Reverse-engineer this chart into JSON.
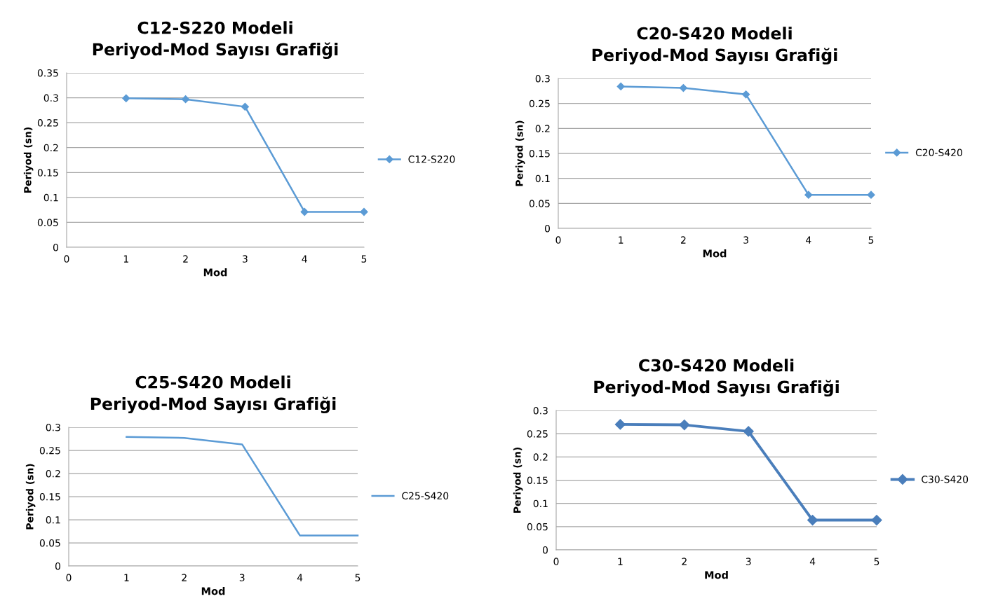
{
  "chart_data": [
    {
      "type": "line",
      "title": "C12-S220 Modeli\nPeriyod-Mod Sayısı Grafiği",
      "xlabel": "Mod",
      "ylabel": "Periyod (sn)",
      "x": [
        1,
        2,
        3,
        4,
        5
      ],
      "xlim": [
        0,
        5
      ],
      "xticks": [
        0,
        1,
        2,
        3,
        4,
        5
      ],
      "ylim": [
        0,
        0.35
      ],
      "yticks": [
        0,
        0.05,
        0.1,
        0.15,
        0.2,
        0.25,
        0.3,
        0.35
      ],
      "grid": "y",
      "legend": "right",
      "marker": "diamond",
      "line_style": "solid",
      "series": [
        {
          "name": "C12-S220",
          "color": "#5b9bd5",
          "values": [
            0.299,
            0.297,
            0.282,
            0.071,
            0.071
          ]
        }
      ]
    },
    {
      "type": "line",
      "title": "C20-S420 Modeli\nPeriyod-Mod Sayısı Grafiği",
      "xlabel": "Mod",
      "ylabel": "Periyod (sn)",
      "x": [
        1,
        2,
        3,
        4,
        5
      ],
      "xlim": [
        0,
        5
      ],
      "xticks": [
        0,
        1,
        2,
        3,
        4,
        5
      ],
      "ylim": [
        0,
        0.3
      ],
      "yticks": [
        0,
        0.05,
        0.1,
        0.15,
        0.2,
        0.25,
        0.3
      ],
      "grid": "y",
      "legend": "right",
      "marker": "diamond",
      "line_style": "solid",
      "series": [
        {
          "name": "C20-S420",
          "color": "#5b9bd5",
          "values": [
            0.284,
            0.281,
            0.268,
            0.067,
            0.067
          ]
        }
      ]
    },
    {
      "type": "line",
      "title": "C25-S420 Modeli\nPeriyod-Mod Sayısı Grafiği",
      "xlabel": "Mod",
      "ylabel": "Periyod (sn)",
      "x": [
        1,
        2,
        3,
        4,
        5
      ],
      "xlim": [
        0,
        5
      ],
      "xticks": [
        0,
        1,
        2,
        3,
        4,
        5
      ],
      "ylim": [
        0,
        0.3
      ],
      "yticks": [
        0,
        0.05,
        0.1,
        0.15,
        0.2,
        0.25,
        0.3
      ],
      "grid": "y",
      "legend": "right",
      "marker": "none",
      "line_style": "solid",
      "series": [
        {
          "name": "C25-S420",
          "color": "#5b9bd5",
          "values": [
            0.279,
            0.277,
            0.263,
            0.066,
            0.066
          ]
        }
      ]
    },
    {
      "type": "line",
      "title": "C30-S420 Modeli\nPeriyod-Mod Sayısı Grafiği",
      "xlabel": "Mod",
      "ylabel": "Periyod (sn)",
      "x": [
        1,
        2,
        3,
        4,
        5
      ],
      "xlim": [
        0,
        5
      ],
      "xticks": [
        0,
        1,
        2,
        3,
        4,
        5
      ],
      "ylim": [
        0,
        0.3
      ],
      "yticks": [
        0,
        0.05,
        0.1,
        0.15,
        0.2,
        0.25,
        0.3
      ],
      "grid": "y",
      "legend": "right",
      "marker": "diamond",
      "line_style": "solid",
      "series": [
        {
          "name": "C30-S420",
          "color": "#4a7ebb",
          "values": [
            0.27,
            0.269,
            0.255,
            0.064,
            0.064
          ]
        }
      ]
    }
  ]
}
